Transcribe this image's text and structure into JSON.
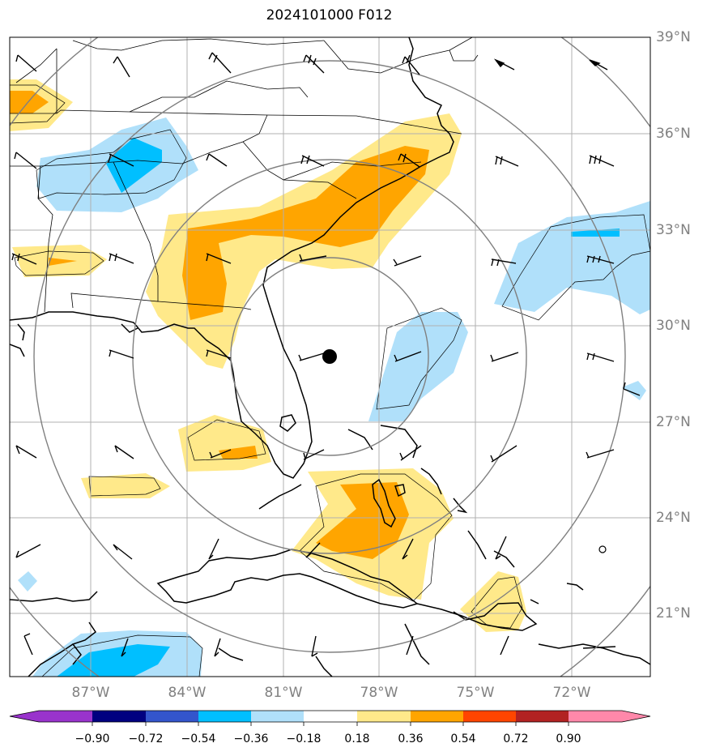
{
  "title": "2024101000 F012",
  "lat_labels": [
    "39°N",
    "36°N",
    "33°N",
    "30°N",
    "27°N",
    "24°N",
    "21°N"
  ],
  "lon_labels": [
    "87°W",
    "84°W",
    "81°W",
    "78°W",
    "75°W",
    "72°W"
  ],
  "colorbar": {
    "tick_labels": [
      "−0.90",
      "−0.72",
      "−0.54",
      "−0.36",
      "−0.18",
      "0.18",
      "0.36",
      "0.54",
      "0.72",
      "0.90"
    ],
    "colors": [
      "#9933cc",
      "#000080",
      "#3355cc",
      "#00bfff",
      "#b0e0fa",
      "#ffffff",
      "#ffe98a",
      "#ffa500",
      "#ff4500",
      "#b22222",
      "#ff88aa"
    ]
  },
  "colors": {
    "coast": "#000000",
    "grid": "#b0b0b0",
    "range_rings": "#808080",
    "tick_label": "#808080",
    "pos_light": "#ffe98a",
    "pos_mid": "#ffa500",
    "neg_light": "#b0e0fa",
    "neg_mid": "#00bfff"
  },
  "storm_center_icon": "filled-circle-icon",
  "wind_barb_icon": "wind-barb-icon"
}
